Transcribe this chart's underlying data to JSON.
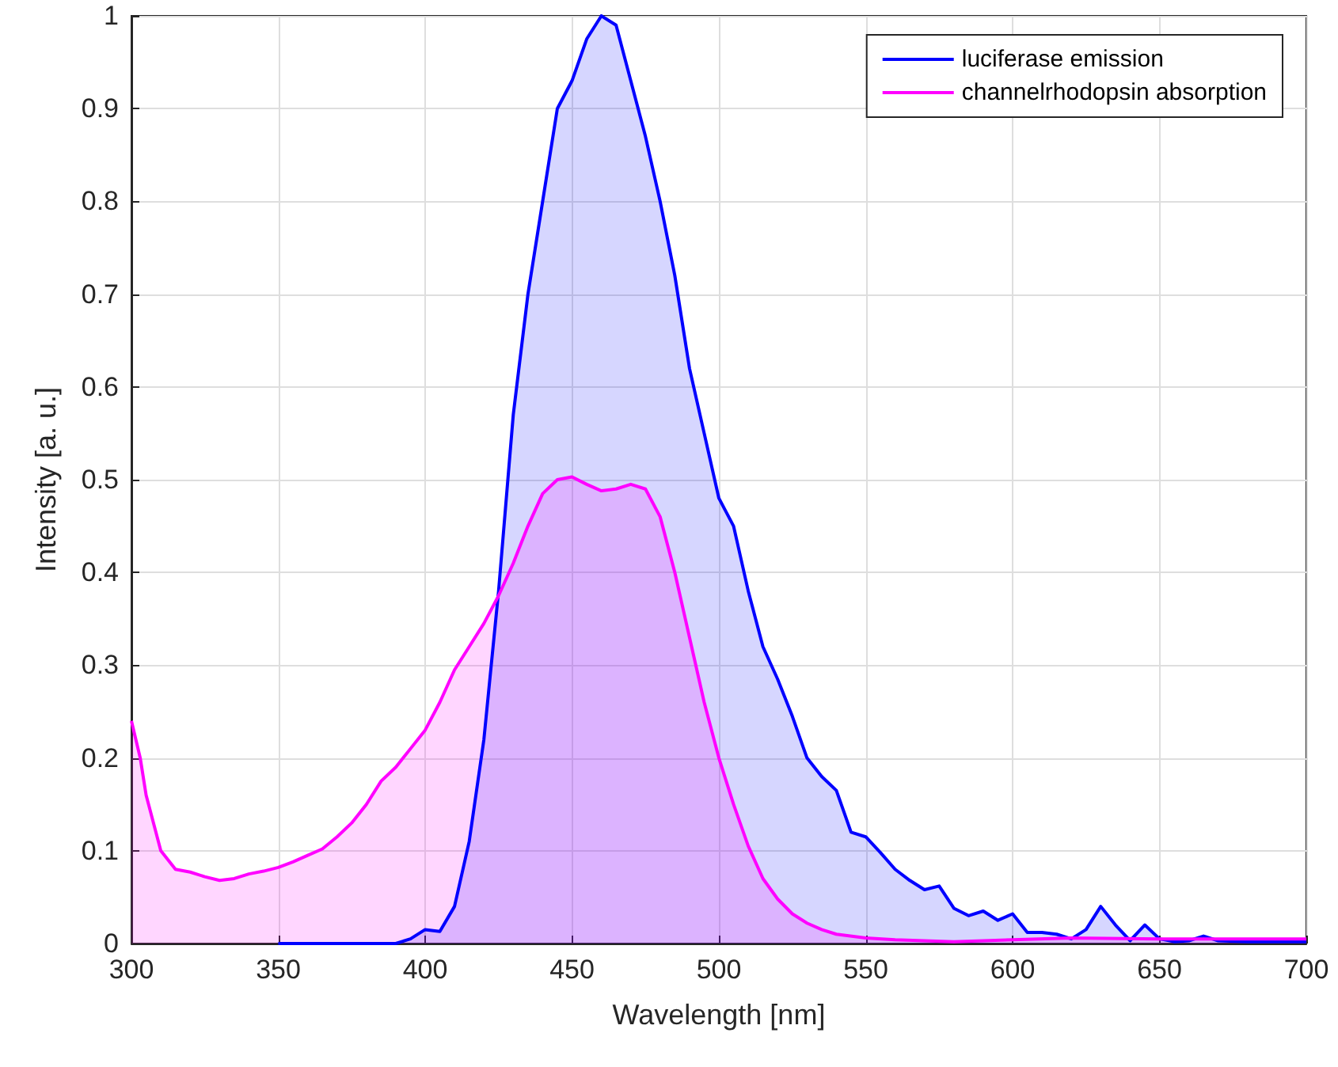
{
  "chart_data": {
    "type": "area",
    "xlabel": "Wavelength [nm]",
    "ylabel": "Intensity [a. u.]",
    "xlim": [
      300,
      700
    ],
    "xticks": [
      300,
      350,
      400,
      450,
      500,
      550,
      600,
      650,
      700
    ],
    "ylim": [
      0,
      1
    ],
    "yticks": [
      0,
      0.1,
      0.2,
      0.3,
      0.4,
      0.5,
      0.6,
      0.7,
      0.8,
      0.9,
      1
    ],
    "grid": true,
    "legend": "top right",
    "marker": "none",
    "line_style": "solid",
    "series": [
      {
        "name": "luciferase emission",
        "color": "#0000ff",
        "x": [
          350,
          390,
          395,
          400,
          405,
          410,
          415,
          420,
          425,
          430,
          435,
          440,
          445,
          450,
          455,
          460,
          465,
          470,
          475,
          480,
          485,
          490,
          495,
          500,
          505,
          510,
          515,
          520,
          525,
          530,
          535,
          540,
          545,
          550,
          555,
          560,
          565,
          570,
          575,
          580,
          585,
          590,
          595,
          600,
          605,
          610,
          615,
          620,
          625,
          630,
          635,
          640,
          645,
          650,
          655,
          660,
          665,
          670,
          680,
          700
        ],
        "values": [
          0,
          0,
          0.005,
          0.015,
          0.013,
          0.04,
          0.11,
          0.22,
          0.38,
          0.57,
          0.7,
          0.8,
          0.9,
          0.93,
          0.975,
          1,
          0.99,
          0.93,
          0.87,
          0.8,
          0.72,
          0.62,
          0.55,
          0.48,
          0.45,
          0.38,
          0.32,
          0.285,
          0.245,
          0.2,
          0.18,
          0.165,
          0.12,
          0.115,
          0.098,
          0.08,
          0.068,
          0.058,
          0.062,
          0.038,
          0.03,
          0.035,
          0.025,
          0.032,
          0.012,
          0.012,
          0.01,
          0.005,
          0.015,
          0.04,
          0.02,
          0.003,
          0.02,
          0.005,
          0.002,
          0.003,
          0.008,
          0.003,
          0.002,
          0.002
        ]
      },
      {
        "name": "channelrhodopsin absorption",
        "color": "#ff00ff",
        "x": [
          300,
          303,
          305,
          310,
          315,
          320,
          325,
          330,
          335,
          340,
          345,
          350,
          355,
          360,
          365,
          370,
          375,
          380,
          385,
          390,
          395,
          400,
          405,
          410,
          415,
          420,
          425,
          430,
          435,
          440,
          445,
          450,
          455,
          460,
          465,
          470,
          475,
          480,
          485,
          490,
          495,
          500,
          505,
          510,
          515,
          520,
          525,
          530,
          535,
          540,
          550,
          560,
          580,
          600,
          620,
          650,
          700
        ],
        "values": [
          0.24,
          0.2,
          0.16,
          0.1,
          0.08,
          0.077,
          0.072,
          0.068,
          0.07,
          0.075,
          0.078,
          0.082,
          0.088,
          0.095,
          0.102,
          0.115,
          0.13,
          0.15,
          0.175,
          0.19,
          0.21,
          0.23,
          0.26,
          0.295,
          0.32,
          0.345,
          0.375,
          0.41,
          0.45,
          0.485,
          0.5,
          0.503,
          0.495,
          0.488,
          0.49,
          0.495,
          0.49,
          0.46,
          0.4,
          0.33,
          0.26,
          0.2,
          0.15,
          0.105,
          0.07,
          0.048,
          0.032,
          0.022,
          0.015,
          0.01,
          0.006,
          0.004,
          0.002,
          0.004,
          0.006,
          0.005,
          0.005
        ]
      }
    ]
  }
}
